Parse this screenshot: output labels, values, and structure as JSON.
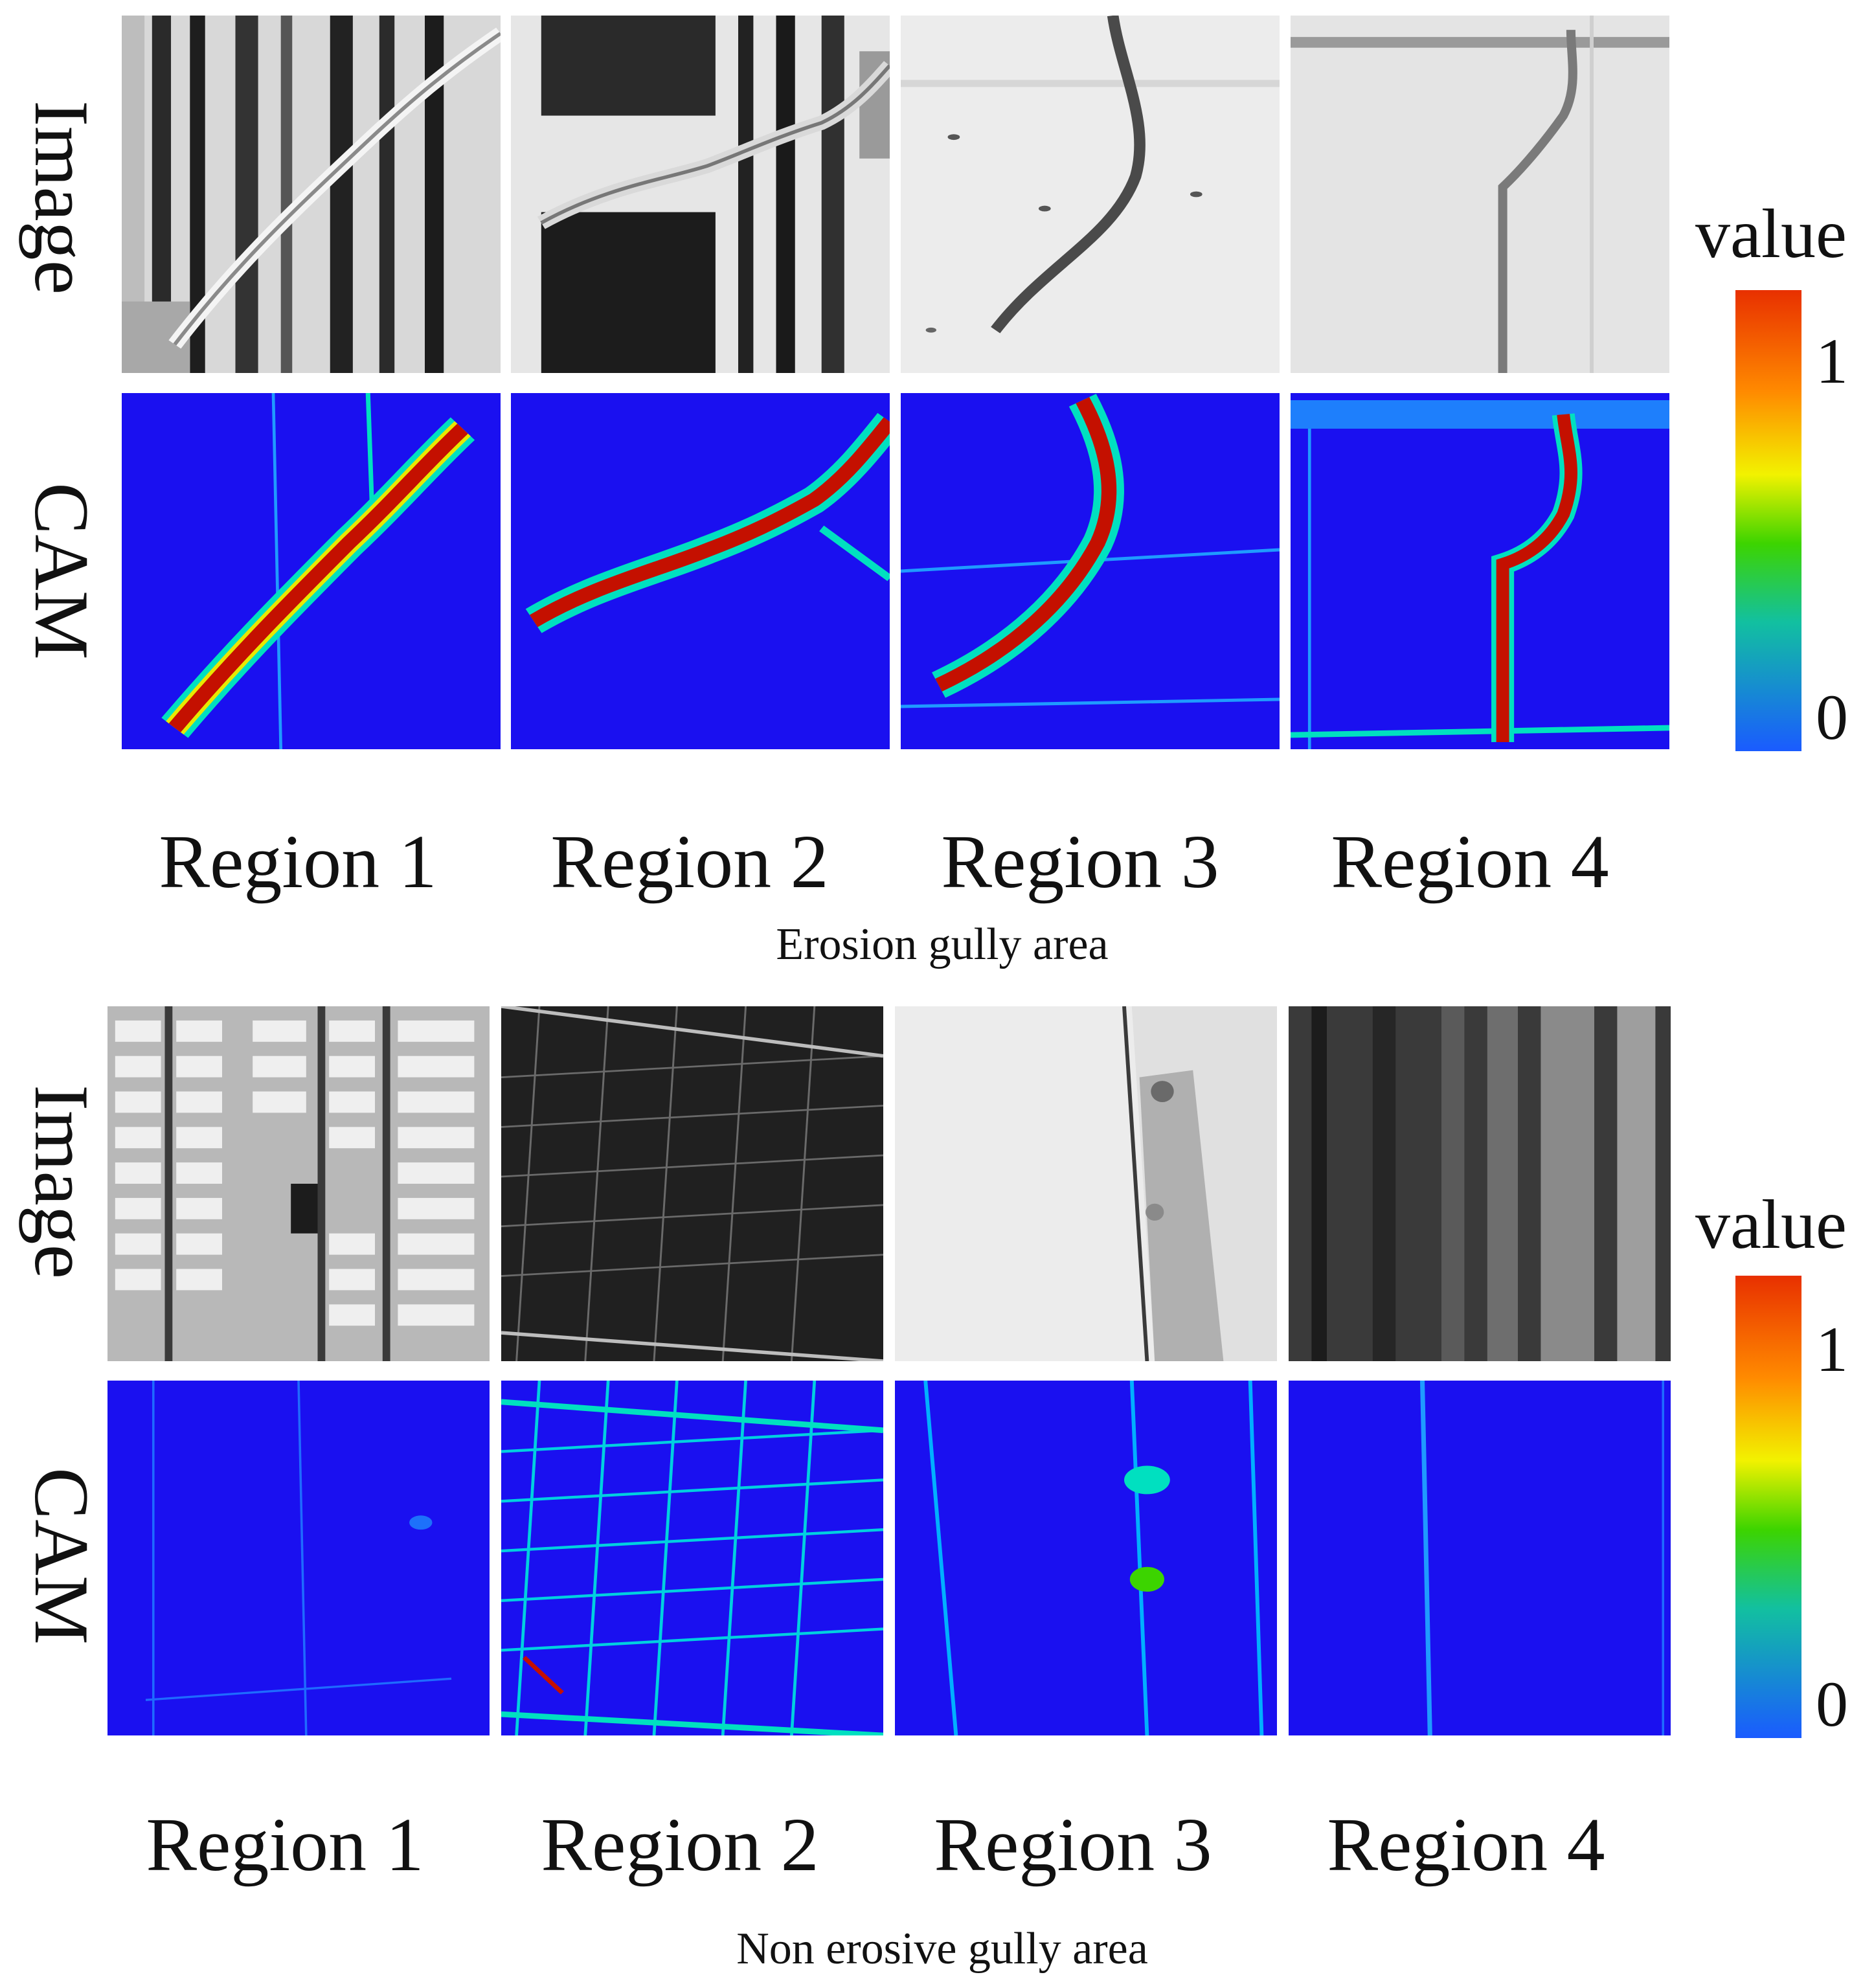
{
  "panels": [
    {
      "caption": "Erosion gully area",
      "row_labels": [
        "Image",
        "CAM"
      ],
      "columns": [
        "Region 1",
        "Region 2",
        "Region 3",
        "Region 4"
      ],
      "colorbar": {
        "title": "value",
        "max_label": "1",
        "min_label": "0"
      }
    },
    {
      "caption": "Non erosive gully area",
      "row_labels": [
        "Image",
        "CAM"
      ],
      "columns": [
        "Region 1",
        "Region 2",
        "Region 3",
        "Region 4"
      ],
      "colorbar": {
        "title": "value",
        "max_label": "1",
        "min_label": "0"
      }
    }
  ],
  "colors": {
    "cam_background": "#1a10f0",
    "cam_low": "#1f9bff",
    "cam_mid": "#00e0c0",
    "cam_high": "#c41000",
    "colorbar_stops": [
      "#1a5bff",
      "#12c0a0",
      "#3cd400",
      "#f2f200",
      "#ff8a00",
      "#e83000"
    ]
  }
}
